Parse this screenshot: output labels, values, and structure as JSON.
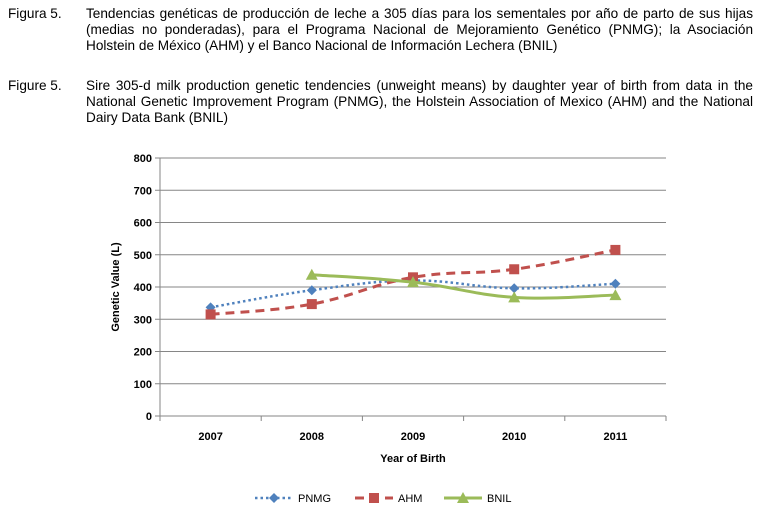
{
  "caption_es": {
    "label": "Figura 5.",
    "text": "Tendencias genéticas de producción de leche a 305 días para los sementales por año de parto de sus hijas (medias no ponderadas), para el Programa Nacional de Mejoramiento Genético (PNMG); la Asociación Holstein de México (AHM) y el Banco Nacional de Información Lechera (BNIL)"
  },
  "caption_en": {
    "label": "Figure 5.",
    "text": "Sire 305-d milk production genetic tendencies (unweight means) by daughter year of birth from data in the National Genetic Improvement Program (PNMG), the Holstein Association of Mexico (AHM) and the National Dairy Data Bank (BNIL)"
  },
  "chart_data": {
    "type": "line",
    "title": "",
    "xlabel": "Year of Birth",
    "ylabel": "Genetic Value (L)",
    "categories": [
      "2007",
      "2008",
      "2009",
      "2010",
      "2011"
    ],
    "ylim": [
      0,
      800
    ],
    "yticks": [
      0,
      100,
      200,
      300,
      400,
      500,
      600,
      700,
      800
    ],
    "grid": true,
    "legend_position": "bottom",
    "series": [
      {
        "name": "PNMG",
        "values": [
          337,
          390,
          420,
          396,
          410
        ],
        "color": "#4f81bd",
        "marker": "diamond",
        "line_style": "dotted"
      },
      {
        "name": "AHM",
        "values": [
          315,
          347,
          430,
          455,
          515
        ],
        "color": "#c0504d",
        "marker": "square",
        "line_style": "dashed"
      },
      {
        "name": "BNIL",
        "values": [
          null,
          438,
          415,
          368,
          375
        ],
        "color": "#9bbb59",
        "marker": "triangle",
        "line_style": "solid"
      }
    ]
  }
}
